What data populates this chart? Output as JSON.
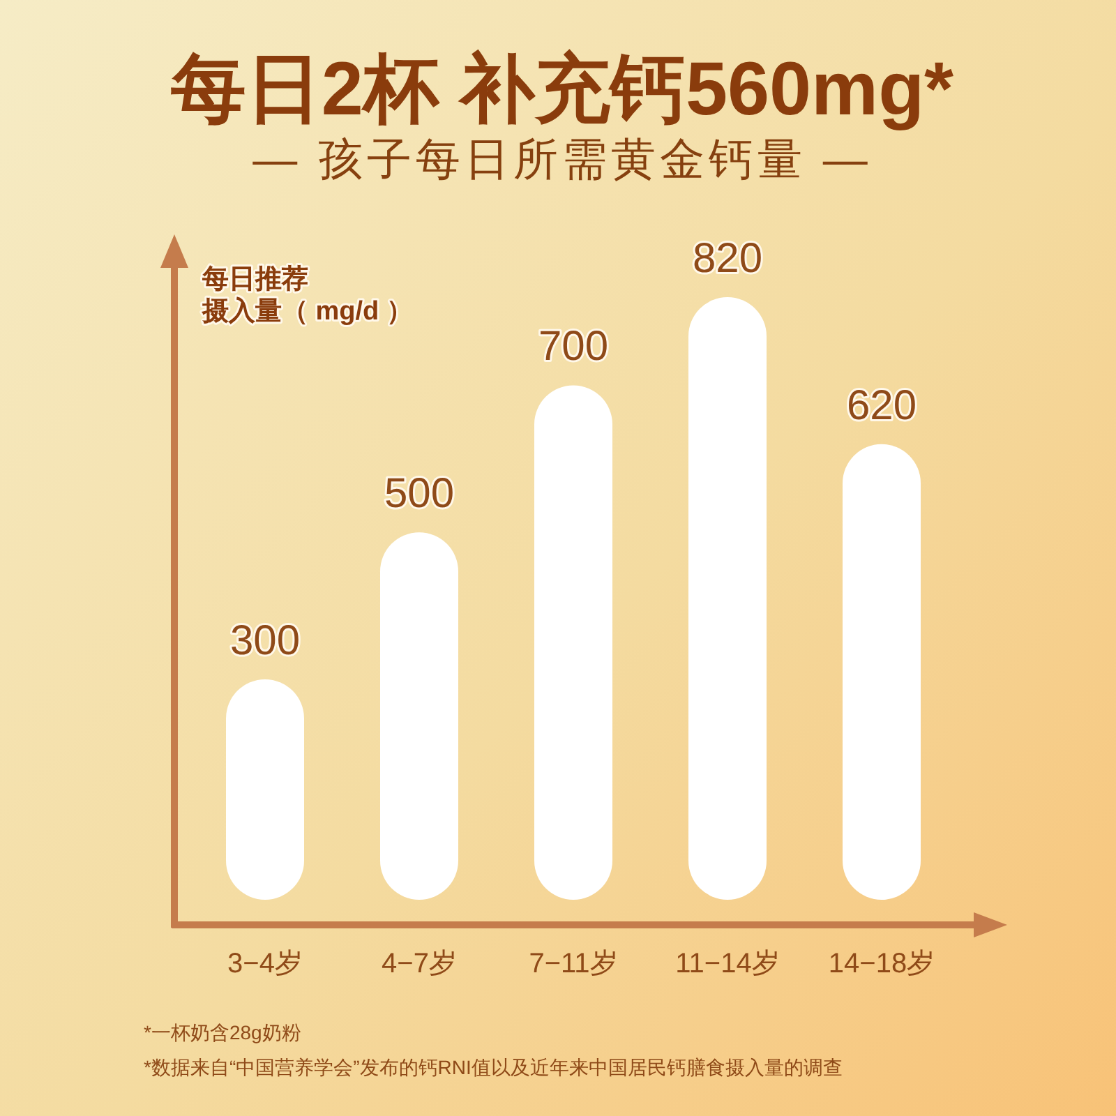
{
  "chart_data": {
    "type": "bar",
    "title": "每日2杯  补充钙560mg*",
    "subtitle": "— 孩子每日所需黄金钙量 —",
    "ylabel": "每日推荐摄入量（ mg/d ）",
    "categories": [
      "3−4岁",
      "4−7岁",
      "7−11岁",
      "11−14岁",
      "14−18岁"
    ],
    "series": [
      {
        "color": "#ffffff",
        "values": [
          300,
          500,
          700,
          820,
          620
        ]
      }
    ],
    "data_labels": true,
    "annotations": [
      "*一杯奶含28g奶粉",
      "*数据来自“中国营养学会”发布的钙RNI值以及近年来中国居民钙膳食摄入量的调查"
    ]
  }
}
